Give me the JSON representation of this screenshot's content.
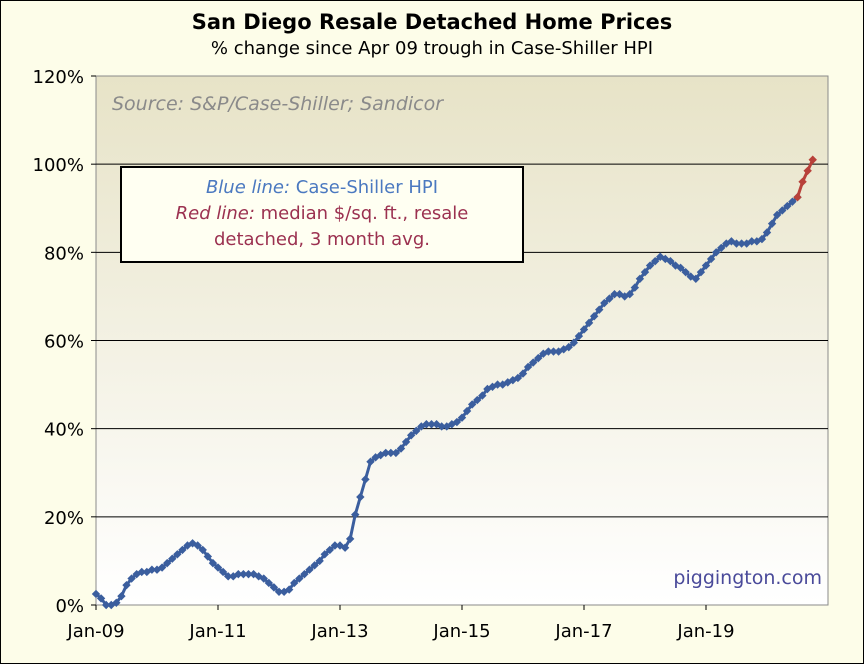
{
  "chart_data": {
    "type": "line",
    "title": "San Diego Resale Detached Home Prices",
    "subtitle": "% change since Apr 09 trough in Case-Shiller HPI",
    "xlabel": "",
    "ylabel": "",
    "ylim": [
      0,
      120
    ],
    "xlim": [
      "2009-01",
      "2020-12"
    ],
    "grid": true,
    "legend_placement": "top-left",
    "source": "Source:  S&P/Case-Shiller;  Sandicor",
    "watermark": "piggington.com",
    "y_ticks": [
      "0%",
      "20%",
      "40%",
      "60%",
      "80%",
      "100%",
      "120%"
    ],
    "x_ticks": [
      "Jan-09",
      "Jan-11",
      "Jan-13",
      "Jan-15",
      "Jan-17",
      "Jan-19"
    ],
    "legend": {
      "blue_prefix": "Blue line:",
      "blue_text": " Case-Shiller HPI",
      "red_prefix": "Red line:",
      "red_text_line1": " median $/sq. ft., resale",
      "red_text_line2": "detached, 3 month avg."
    },
    "series": [
      {
        "color": "#3b5e9e",
        "x": [
          "2009-01",
          "2009-02",
          "2009-03",
          "2009-04",
          "2009-05",
          "2009-06",
          "2009-07",
          "2009-08",
          "2009-09",
          "2009-10",
          "2009-11",
          "2009-12",
          "2010-01",
          "2010-02",
          "2010-03",
          "2010-04",
          "2010-05",
          "2010-06",
          "2010-07",
          "2010-08",
          "2010-09",
          "2010-10",
          "2010-11",
          "2010-12",
          "2011-01",
          "2011-02",
          "2011-03",
          "2011-04",
          "2011-05",
          "2011-06",
          "2011-07",
          "2011-08",
          "2011-09",
          "2011-10",
          "2011-11",
          "2011-12",
          "2012-01",
          "2012-02",
          "2012-03",
          "2012-04",
          "2012-05",
          "2012-06",
          "2012-07",
          "2012-08",
          "2012-09",
          "2012-10",
          "2012-11",
          "2012-12",
          "2013-01",
          "2013-02",
          "2013-03",
          "2013-04",
          "2013-05",
          "2013-06",
          "2013-07",
          "2013-08",
          "2013-09",
          "2013-10",
          "2013-11",
          "2013-12",
          "2014-01",
          "2014-02",
          "2014-03",
          "2014-04",
          "2014-05",
          "2014-06",
          "2014-07",
          "2014-08",
          "2014-09",
          "2014-10",
          "2014-11",
          "2014-12",
          "2015-01",
          "2015-02",
          "2015-03",
          "2015-04",
          "2015-05",
          "2015-06",
          "2015-07",
          "2015-08",
          "2015-09",
          "2015-10",
          "2015-11",
          "2015-12",
          "2016-01",
          "2016-02",
          "2016-03",
          "2016-04",
          "2016-05",
          "2016-06",
          "2016-07",
          "2016-08",
          "2016-09",
          "2016-10",
          "2016-11",
          "2016-12",
          "2017-01",
          "2017-02",
          "2017-03",
          "2017-04",
          "2017-05",
          "2017-06",
          "2017-07",
          "2017-08",
          "2017-09",
          "2017-10",
          "2017-11",
          "2017-12",
          "2018-01",
          "2018-02",
          "2018-03",
          "2018-04",
          "2018-05",
          "2018-06",
          "2018-07",
          "2018-08",
          "2018-09",
          "2018-10",
          "2018-11",
          "2018-12",
          "2019-01",
          "2019-02",
          "2019-03",
          "2019-04",
          "2019-05",
          "2019-06",
          "2019-07",
          "2019-08",
          "2019-09",
          "2019-10",
          "2019-11",
          "2019-12",
          "2020-01",
          "2020-02",
          "2020-03",
          "2020-04",
          "2020-05",
          "2020-06",
          "2020-07"
        ],
        "values": [
          2.5,
          1.5,
          0,
          0,
          0.5,
          2,
          4.5,
          6,
          7,
          7.5,
          7.5,
          8,
          8,
          8.5,
          9.5,
          10.5,
          11.5,
          12.5,
          13.5,
          14,
          13.5,
          12.5,
          11,
          9.5,
          8.5,
          7.5,
          6.5,
          6.5,
          7,
          7,
          7,
          7,
          6.5,
          6,
          5,
          4,
          3,
          3,
          3.5,
          5,
          6,
          7,
          8,
          9,
          10,
          11.5,
          12.5,
          13.5,
          13.5,
          13,
          15,
          20.5,
          24.5,
          28.5,
          32.5,
          33.5,
          34,
          34.5,
          34.5,
          34.5,
          35.5,
          37,
          38.5,
          39.5,
          40.5,
          41,
          41,
          41,
          40.5,
          40.5,
          41,
          41.5,
          42.5,
          44,
          45.5,
          46.5,
          47.5,
          49,
          49.5,
          50,
          50,
          50.5,
          51,
          51.5,
          52.5,
          54,
          55,
          56,
          57,
          57.5,
          57.5,
          57.5,
          58,
          58.5,
          59.5,
          61,
          62.5,
          64,
          65.5,
          67,
          68.5,
          69.5,
          70.5,
          70.5,
          70,
          70.5,
          72,
          74,
          75.5,
          77,
          78,
          79,
          78.5,
          78,
          77,
          76.5,
          75.5,
          74.5,
          74,
          75.5,
          77,
          78.5,
          80,
          81,
          82,
          82.5,
          82,
          82,
          82,
          82.5,
          82.5,
          83,
          84.5,
          86.5,
          88.5,
          89.5,
          90.5,
          91.5,
          92.5
        ]
      },
      {
        "color": "#b8413a",
        "x": [
          "2020-07",
          "2020-08",
          "2020-09",
          "2020-10"
        ],
        "values": [
          92.5,
          96,
          98.5,
          101
        ]
      }
    ]
  }
}
